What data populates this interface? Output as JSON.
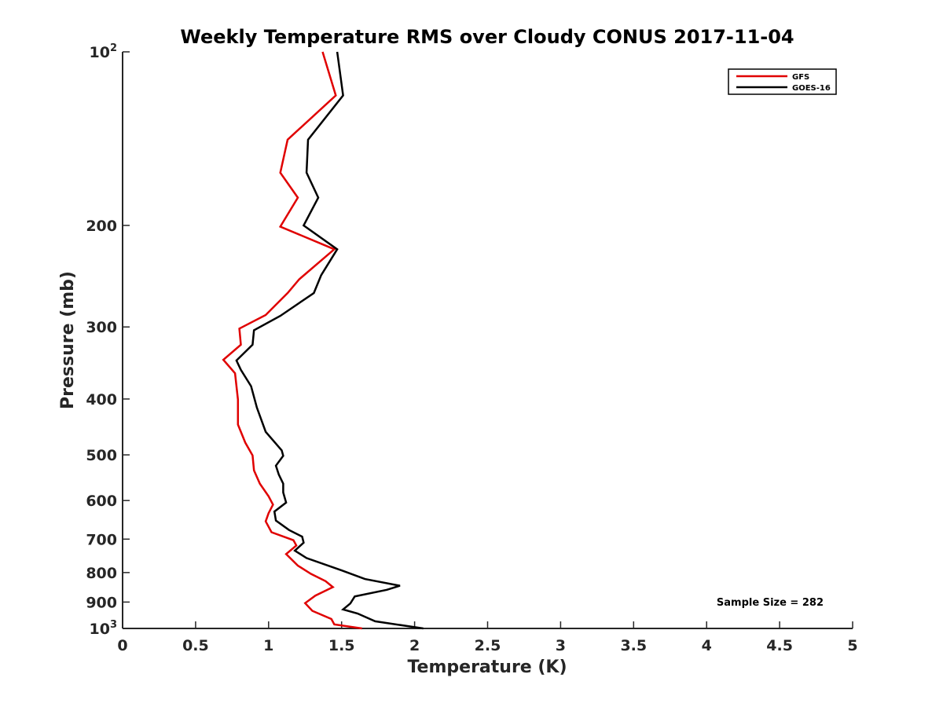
{
  "chart_data": {
    "type": "line",
    "title": "Weekly Temperature RMS over Cloudy CONUS 2017-11-04",
    "xlabel": "Temperature (K)",
    "ylabel": "Pressure (mb)",
    "xlim": [
      0,
      5
    ],
    "ylim": [
      100,
      1000
    ],
    "y_scale": "log",
    "y_reversed": true,
    "grid": false,
    "legend_position": "top-right",
    "x_ticks": [
      "0",
      "0.5",
      "1",
      "1.5",
      "2",
      "2.5",
      "3",
      "3.5",
      "4",
      "4.5",
      "5"
    ],
    "x_tick_values": [
      0,
      0.5,
      1,
      1.5,
      2,
      2.5,
      3,
      3.5,
      4,
      4.5,
      5
    ],
    "y_ticks": [
      {
        "value": 100,
        "base": "10",
        "exp": "2"
      },
      {
        "value": 200,
        "text": "200"
      },
      {
        "value": 300,
        "text": "300"
      },
      {
        "value": 400,
        "text": "400"
      },
      {
        "value": 500,
        "text": "500"
      },
      {
        "value": 600,
        "text": "600"
      },
      {
        "value": 700,
        "text": "700"
      },
      {
        "value": 800,
        "text": "800"
      },
      {
        "value": 900,
        "text": "900"
      },
      {
        "value": 1000,
        "base": "10",
        "exp": "3"
      }
    ],
    "annotation": "Sample Size = 282",
    "series": [
      {
        "name": "GFS",
        "color": "#e00000",
        "points": [
          [
            1.37,
            100
          ],
          [
            1.46,
            119
          ],
          [
            1.13,
            142
          ],
          [
            1.08,
            162
          ],
          [
            1.2,
            179
          ],
          [
            1.08,
            201
          ],
          [
            1.45,
            220
          ],
          [
            1.21,
            248
          ],
          [
            1.13,
            262
          ],
          [
            0.98,
            286
          ],
          [
            0.8,
            302
          ],
          [
            0.81,
            322
          ],
          [
            0.69,
            342
          ],
          [
            0.77,
            361
          ],
          [
            0.79,
            401
          ],
          [
            0.79,
            443
          ],
          [
            0.84,
            476
          ],
          [
            0.89,
            501
          ],
          [
            0.9,
            532
          ],
          [
            0.94,
            561
          ],
          [
            1.0,
            590
          ],
          [
            1.03,
            610
          ],
          [
            1.0,
            631
          ],
          [
            0.98,
            652
          ],
          [
            1.02,
            681
          ],
          [
            1.17,
            703
          ],
          [
            1.19,
            718
          ],
          [
            1.12,
            743
          ],
          [
            1.2,
            778
          ],
          [
            1.29,
            804
          ],
          [
            1.39,
            828
          ],
          [
            1.44,
            848
          ],
          [
            1.32,
            877
          ],
          [
            1.25,
            904
          ],
          [
            1.3,
            932
          ],
          [
            1.43,
            963
          ],
          [
            1.45,
            984
          ],
          [
            1.64,
            1000
          ]
        ]
      },
      {
        "name": "GOES-16",
        "color": "#000000",
        "points": [
          [
            1.47,
            100
          ],
          [
            1.51,
            119
          ],
          [
            1.27,
            142
          ],
          [
            1.26,
            162
          ],
          [
            1.34,
            179
          ],
          [
            1.24,
            200
          ],
          [
            1.47,
            220
          ],
          [
            1.36,
            244
          ],
          [
            1.31,
            262
          ],
          [
            1.08,
            287
          ],
          [
            0.9,
            304
          ],
          [
            0.89,
            322
          ],
          [
            0.78,
            343
          ],
          [
            0.81,
            356
          ],
          [
            0.88,
            380
          ],
          [
            0.92,
            414
          ],
          [
            0.98,
            456
          ],
          [
            1.09,
            491
          ],
          [
            1.1,
            502
          ],
          [
            1.05,
            522
          ],
          [
            1.07,
            541
          ],
          [
            1.1,
            561
          ],
          [
            1.1,
            581
          ],
          [
            1.12,
            605
          ],
          [
            1.04,
            627
          ],
          [
            1.05,
            650
          ],
          [
            1.14,
            675
          ],
          [
            1.23,
            693
          ],
          [
            1.24,
            710
          ],
          [
            1.18,
            733
          ],
          [
            1.26,
            755
          ],
          [
            1.5,
            793
          ],
          [
            1.66,
            821
          ],
          [
            1.9,
            843
          ],
          [
            1.81,
            857
          ],
          [
            1.59,
            880
          ],
          [
            1.56,
            905
          ],
          [
            1.51,
            927
          ],
          [
            1.61,
            942
          ],
          [
            1.73,
            972
          ],
          [
            2.06,
            1000
          ]
        ]
      }
    ]
  }
}
